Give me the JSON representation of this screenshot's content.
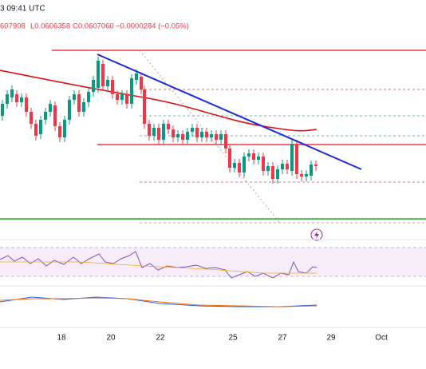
{
  "header": {
    "time": "3 09:41 UTC",
    "ohlc": [
      "607908",
      "L0.0606358",
      "C0.0607060",
      "−0.0000284 (−0.05%)"
    ]
  },
  "x_axis": {
    "labels": [
      "18",
      "20",
      "22",
      "25",
      "27",
      "29",
      "Oct"
    ]
  }
}
